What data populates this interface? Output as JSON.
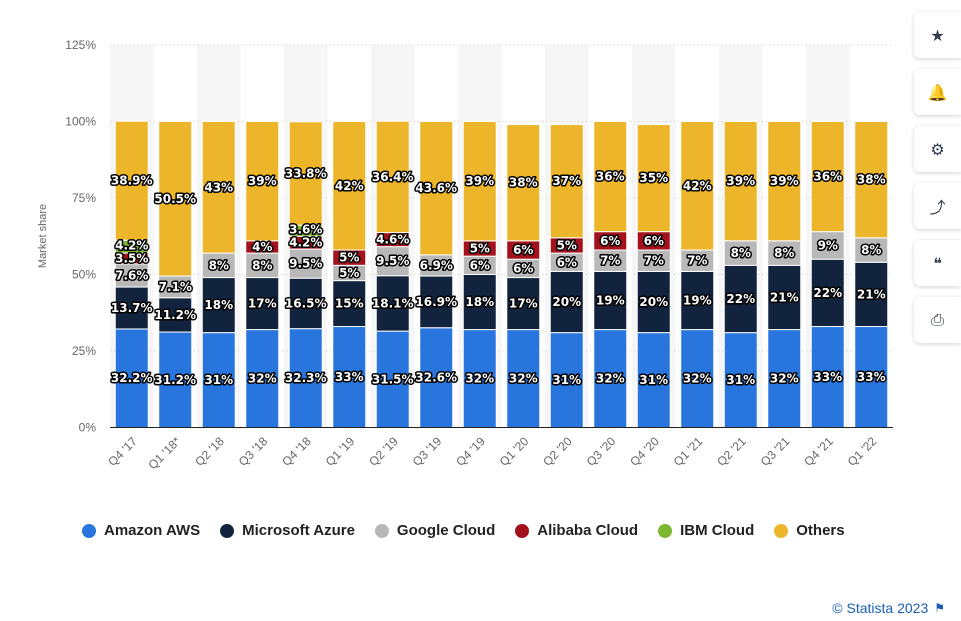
{
  "chart_data": {
    "type": "bar",
    "stacked": true,
    "title": "",
    "xlabel": "",
    "ylabel": "Market share",
    "ylim": [
      0,
      125
    ],
    "yticks": [
      "0%",
      "25%",
      "50%",
      "75%",
      "100%",
      "125%"
    ],
    "grid": true,
    "legend_position": "bottom",
    "categories": [
      "Q4 '17",
      "Q1 '18*",
      "Q2 '18",
      "Q3 '18",
      "Q4 '18",
      "Q1 '19",
      "Q2 '19",
      "Q3 '19",
      "Q4 '19",
      "Q1 '20",
      "Q2 '20",
      "Q3 '20",
      "Q4 '20",
      "Q1 '21",
      "Q2 '21",
      "Q3 '21",
      "Q4 '21",
      "Q1 '22"
    ],
    "series": [
      {
        "name": "Amazon AWS",
        "color": "#2876dd",
        "values": [
          32.2,
          31.2,
          31,
          32,
          32.3,
          33,
          31.5,
          32.6,
          32,
          32,
          31,
          32,
          31,
          32,
          31,
          32,
          33,
          33
        ],
        "labels": [
          "32.2%",
          "31.2%",
          "31%",
          "32%",
          "32.3%",
          "33%",
          "31.5%",
          "32.6%",
          "32%",
          "32%",
          "31%",
          "32%",
          "31%",
          "32%",
          "31%",
          "32%",
          "33%",
          "33%"
        ]
      },
      {
        "name": "Microsoft Azure",
        "color": "#12243d",
        "values": [
          13.7,
          11.2,
          18,
          17,
          16.5,
          15,
          18.1,
          16.9,
          18,
          17,
          20,
          19,
          20,
          19,
          22,
          21,
          22,
          21
        ],
        "labels": [
          "13.7%",
          "11.2%",
          "18%",
          "17%",
          "16.5%",
          "15%",
          "18.1%",
          "16.9%",
          "18%",
          "17%",
          "20%",
          "19%",
          "20%",
          "19%",
          "22%",
          "21%",
          "22%",
          "21%"
        ]
      },
      {
        "name": "Google Cloud",
        "color": "#b8b8b8",
        "values": [
          7.6,
          7.1,
          8,
          8,
          9.5,
          5,
          9.5,
          6.9,
          6,
          6,
          6,
          7,
          7,
          7,
          8,
          8,
          9,
          8
        ],
        "labels": [
          "7.6%",
          "7.1%",
          "8%",
          "8%",
          "9.5%",
          "5%",
          "9.5%",
          "6.9%",
          "6%",
          "6%",
          "6%",
          "7%",
          "7%",
          "7%",
          "8%",
          "8%",
          "9%",
          "8%"
        ]
      },
      {
        "name": "Alibaba Cloud",
        "color": "#a3111d",
        "values": [
          3.5,
          0,
          0,
          4,
          4.2,
          5,
          4.6,
          0,
          5,
          6,
          5,
          6,
          6,
          0,
          0,
          0,
          0,
          0
        ],
        "labels": [
          "3.5%",
          "",
          "",
          "4%",
          "4.2%",
          "5%",
          "4.6%",
          "",
          "5%",
          "6%",
          "5%",
          "6%",
          "6%",
          "",
          "",
          "",
          "",
          ""
        ]
      },
      {
        "name": "IBM Cloud",
        "color": "#7cb82f",
        "values": [
          4.2,
          0,
          0,
          0,
          3.6,
          0,
          0,
          0,
          0,
          0,
          0,
          0,
          0,
          0,
          0,
          0,
          0,
          0
        ],
        "labels": [
          "4.2%",
          "",
          "",
          "",
          "3.6%",
          "",
          "",
          "",
          "",
          "",
          "",
          "",
          "",
          "",
          "",
          "",
          "",
          ""
        ]
      },
      {
        "name": "Others",
        "color": "#edb52a",
        "values": [
          38.9,
          50.5,
          43,
          39,
          33.8,
          42,
          36.4,
          43.6,
          39,
          38,
          37,
          36,
          35,
          42,
          39,
          39,
          36,
          38
        ],
        "labels": [
          "38.9%",
          "50.5%",
          "43%",
          "39%",
          "33.8%",
          "42%",
          "36.4%",
          "43.6%",
          "39%",
          "38%",
          "37%",
          "36%",
          "35%",
          "42%",
          "39%",
          "39%",
          "36%",
          "38%"
        ]
      }
    ]
  },
  "legend": {
    "items": [
      {
        "label": "Amazon AWS",
        "color": "#2876dd"
      },
      {
        "label": "Microsoft Azure",
        "color": "#12243d"
      },
      {
        "label": "Google Cloud",
        "color": "#b8b8b8"
      },
      {
        "label": "Alibaba Cloud",
        "color": "#a3111d"
      },
      {
        "label": "IBM Cloud",
        "color": "#7cb82f"
      },
      {
        "label": "Others",
        "color": "#edb52a"
      }
    ]
  },
  "credit": {
    "text": "© Statista 2023",
    "flag_icon": "flag-icon"
  },
  "toolbar": {
    "buttons": [
      {
        "icon": "star-icon",
        "glyph": "★"
      },
      {
        "icon": "bell-icon",
        "glyph": "🔔"
      },
      {
        "icon": "gear-icon",
        "glyph": "⚙"
      },
      {
        "icon": "share-icon",
        "glyph": "⤴"
      },
      {
        "icon": "quote-icon",
        "glyph": "❝"
      },
      {
        "icon": "print-icon",
        "glyph": "⎙"
      }
    ]
  }
}
